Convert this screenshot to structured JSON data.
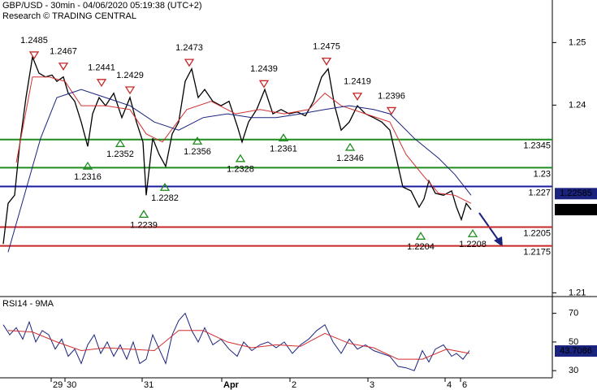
{
  "chart_data": [
    {
      "type": "line",
      "title": "GBP/USD - 30min - 04/06/2020 05:19:38 (UTC+2)",
      "subtitle": "Research © TRADING CENTRAL",
      "xlim": [
        0,
        340
      ],
      "xticks": [
        {
          "value": 31.5,
          "label": "29"
        },
        {
          "value": 40,
          "label": "30"
        },
        {
          "value": 87.5,
          "label": "31"
        },
        {
          "value": 136.5,
          "label": "Apr"
        },
        {
          "value": 178.5,
          "label": "2"
        },
        {
          "value": 226.5,
          "label": "3"
        },
        {
          "value": 274,
          "label": "4"
        },
        {
          "value": 283.5,
          "label": "6"
        }
      ],
      "ylim": [
        1.2094,
        1.2568
      ],
      "yticks": [
        1.25,
        1.24,
        1.21
      ],
      "series": [
        {
          "color": "#000000",
          "x": [
            2,
            5,
            9,
            12,
            16,
            20,
            24,
            28,
            32,
            35,
            39,
            42,
            46,
            50,
            54,
            57,
            61,
            65,
            70,
            75,
            80,
            84,
            88,
            90,
            94,
            98,
            102,
            106,
            110,
            114,
            118,
            122,
            126,
            131,
            136,
            141,
            146,
            149,
            153,
            158,
            163,
            168,
            173,
            178,
            183,
            188,
            193,
            198,
            202,
            206,
            210,
            215,
            220,
            225,
            230,
            235,
            240,
            244,
            248,
            253,
            258,
            261,
            264,
            268,
            273,
            278,
            281,
            284,
            287,
            290
          ],
          "values": [
            1.2178,
            1.2243,
            1.2256,
            1.2334,
            1.2412,
            1.2477,
            1.2451,
            1.2445,
            1.2448,
            1.2438,
            1.2445,
            1.2419,
            1.2406,
            1.2373,
            1.2334,
            1.2386,
            1.2412,
            1.2399,
            1.2419,
            1.238,
            1.2412,
            1.2373,
            1.2341,
            1.2256,
            1.2347,
            1.2321,
            1.2302,
            1.2354,
            1.2373,
            1.2438,
            1.2458,
            1.2412,
            1.2425,
            1.2406,
            1.2399,
            1.2406,
            1.2367,
            1.2341,
            1.2373,
            1.2393,
            1.2425,
            1.2386,
            1.2393,
            1.2386,
            1.2389,
            1.2383,
            1.2406,
            1.2445,
            1.2458,
            1.2399,
            1.236,
            1.2373,
            1.2399,
            1.2386,
            1.238,
            1.2373,
            1.236,
            1.2315,
            1.2269,
            1.2263,
            1.2237,
            1.225,
            1.2279,
            1.2259,
            1.2256,
            1.2263,
            1.2237,
            1.2217,
            1.2243,
            1.2233
          ]
        },
        {
          "color": "#d32f2f",
          "x": [
            10,
            20,
            30,
            40,
            50,
            65,
            80,
            90,
            100,
            115,
            130,
            145,
            160,
            175,
            190,
            200,
            210,
            225,
            240,
            250,
            260,
            270,
            280,
            290
          ],
          "values": [
            1.2308,
            1.2445,
            1.2445,
            1.2438,
            1.2399,
            1.2399,
            1.2393,
            1.2354,
            1.2341,
            1.2393,
            1.2406,
            1.2386,
            1.2393,
            1.2386,
            1.2393,
            1.2419,
            1.2399,
            1.2386,
            1.2373,
            1.2321,
            1.2289,
            1.2259,
            1.2256,
            1.2243
          ]
        },
        {
          "color": "#1a237e",
          "x": [
            5,
            15,
            25,
            35,
            50,
            65,
            80,
            95,
            110,
            125,
            140,
            155,
            170,
            185,
            200,
            215,
            230,
            240,
            255,
            270,
            280,
            290
          ],
          "values": [
            1.2165,
            1.2256,
            1.2347,
            1.2412,
            1.2425,
            1.2412,
            1.2399,
            1.2373,
            1.236,
            1.238,
            1.2386,
            1.238,
            1.238,
            1.2386,
            1.2393,
            1.2399,
            1.2393,
            1.2386,
            1.2347,
            1.2315,
            1.2289,
            1.2256
          ]
        }
      ],
      "levels": [
        {
          "value": 1.2345,
          "color": "#1e8c1e",
          "label_color": "#1e8c1e"
        },
        {
          "value": 1.23,
          "color": "#1e8c1e",
          "label_color": "#1e8c1e"
        },
        {
          "value": 1.227,
          "color": "#1a1aa0",
          "label_color": "#000000"
        },
        {
          "value": 1.2205,
          "color": "#c62828",
          "label_color": "#c62828"
        },
        {
          "value": 1.2175,
          "color": "#c62828",
          "label_color": "#c62828"
        }
      ],
      "highs": [
        {
          "x": 21,
          "value": 1.2485
        },
        {
          "x": 39,
          "value": 1.2467
        },
        {
          "x": 62.5,
          "value": 1.2441
        },
        {
          "x": 80,
          "value": 1.2429
        },
        {
          "x": 116.5,
          "value": 1.2473
        },
        {
          "x": 162.5,
          "value": 1.2439
        },
        {
          "x": 201,
          "value": 1.2475
        },
        {
          "x": 220,
          "value": 1.2419
        },
        {
          "x": 241,
          "value": 1.2396
        }
      ],
      "lows": [
        {
          "x": 54,
          "value": 1.2316
        },
        {
          "x": 74,
          "value": 1.2352
        },
        {
          "x": 88.5,
          "value": 1.2239
        },
        {
          "x": 101.5,
          "value": 1.2282
        },
        {
          "x": 121.5,
          "value": 1.2356
        },
        {
          "x": 148,
          "value": 1.2328
        },
        {
          "x": 174.5,
          "value": 1.2361
        },
        {
          "x": 215.5,
          "value": 1.2346
        },
        {
          "x": 259,
          "value": 1.2204
        },
        {
          "x": 291,
          "value": 1.2208
        }
      ],
      "price_tags": [
        {
          "value": 1.22585,
          "color": "#1a237e"
        },
        {
          "value": 1.2233,
          "color": "#000000"
        }
      ]
    },
    {
      "type": "line",
      "title": "RSI14 - 9MA",
      "xlim": [
        0,
        340
      ],
      "ylim": [
        25,
        80
      ],
      "yticks": [
        70,
        50,
        30
      ],
      "series": [
        {
          "color": "#1a237e",
          "x": [
            2,
            6,
            10,
            14,
            18,
            22,
            26,
            30,
            34,
            38,
            42,
            46,
            50,
            54,
            58,
            62,
            66,
            70,
            74,
            78,
            82,
            86,
            90,
            94,
            98,
            102,
            106,
            110,
            114,
            118,
            122,
            126,
            131,
            136,
            141,
            146,
            150,
            155,
            160,
            165,
            170,
            175,
            180,
            185,
            190,
            195,
            200,
            205,
            210,
            215,
            220,
            225,
            230,
            235,
            240,
            245,
            250,
            255,
            260,
            264,
            268,
            273,
            278,
            281,
            285,
            289
          ],
          "values": [
            62,
            55,
            60,
            52,
            64,
            50,
            58,
            55,
            45,
            52,
            40,
            45,
            35,
            48,
            55,
            42,
            50,
            40,
            48,
            38,
            50,
            35,
            38,
            55,
            45,
            35,
            55,
            65,
            70,
            58,
            50,
            60,
            48,
            52,
            45,
            40,
            50,
            44,
            48,
            50,
            46,
            50,
            42,
            48,
            52,
            58,
            62,
            50,
            42,
            52,
            45,
            48,
            44,
            42,
            40,
            33,
            32,
            30,
            44,
            36,
            45,
            48,
            40,
            42,
            38,
            44
          ]
        },
        {
          "color": "#d32f2f",
          "x": [
            5,
            20,
            35,
            50,
            65,
            80,
            95,
            110,
            125,
            140,
            155,
            170,
            185,
            200,
            215,
            230,
            245,
            260,
            275,
            289
          ],
          "values": [
            58,
            57,
            50,
            44,
            46,
            45,
            44,
            58,
            58,
            50,
            46,
            48,
            47,
            56,
            49,
            46,
            38,
            38,
            45,
            42
          ]
        }
      ],
      "value_tag": {
        "value": 43.7086,
        "color": "#1a237e"
      }
    }
  ]
}
